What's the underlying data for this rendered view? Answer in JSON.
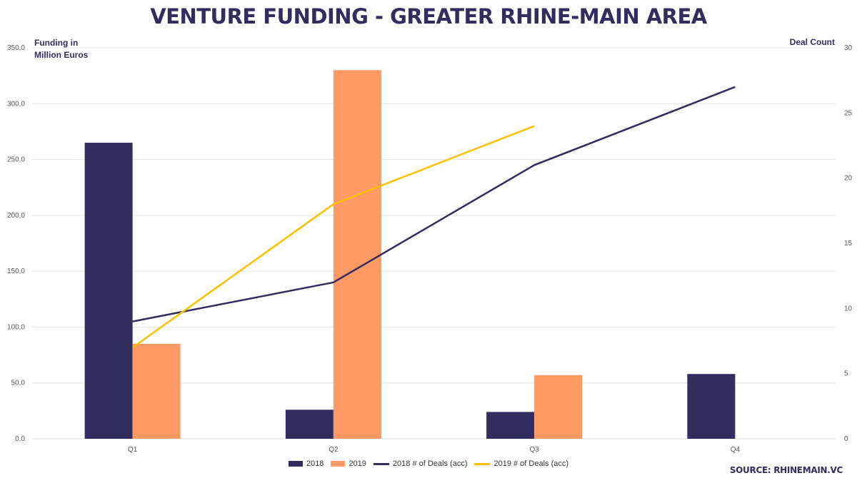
{
  "title": "Venture Funding - Greater Rhine-Main Area",
  "source": "Source: RhineMain.VC",
  "chart_data": {
    "type": "bar",
    "categories": [
      "Q1",
      "Q2",
      "Q3",
      "Q4"
    ],
    "series": [
      {
        "name": "2018",
        "kind": "bar",
        "axis": "left",
        "color": "#322d5f",
        "values": [
          265,
          26,
          24,
          58
        ]
      },
      {
        "name": "2019",
        "kind": "bar",
        "axis": "left",
        "color": "#ff9966",
        "values": [
          85,
          330,
          57,
          null
        ]
      },
      {
        "name": "2018 # of Deals (acc)",
        "kind": "line",
        "axis": "right",
        "color": "#322d5f",
        "values": [
          9,
          12,
          21,
          27
        ]
      },
      {
        "name": "2019 # of Deals (acc)",
        "kind": "line",
        "axis": "right",
        "color": "#ffc000",
        "values": [
          7,
          18,
          24,
          null
        ]
      }
    ],
    "ylabel": "Funding in Million Euros",
    "ylabel_lines": [
      "Funding in",
      "Million Euros"
    ],
    "y2label": "Deal Count",
    "ylim": [
      0,
      350
    ],
    "y2lim": [
      0,
      30
    ],
    "yticks": [
      "0,0",
      "50,0",
      "100,0",
      "150,0",
      "200,0",
      "250,0",
      "300,0",
      "350,0"
    ],
    "y2ticks": [
      "0",
      "5",
      "10",
      "15",
      "20",
      "25",
      "30"
    ],
    "grid": true,
    "legend_position": "bottom"
  }
}
